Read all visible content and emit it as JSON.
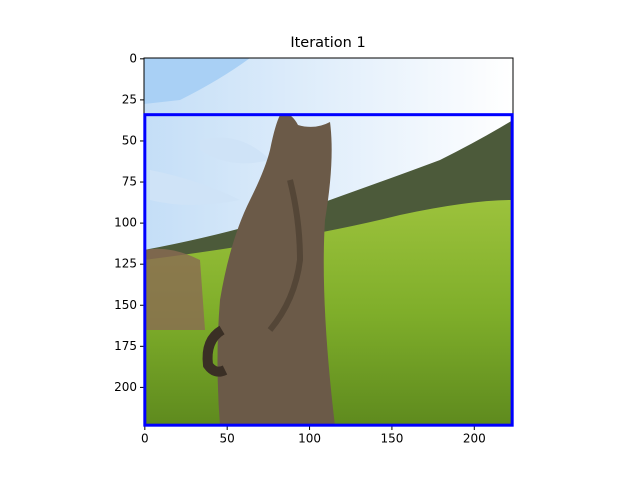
{
  "chart_data": {
    "type": "image",
    "title": "Iteration 1",
    "xlim": [
      -0.5,
      223.5
    ],
    "ylim": [
      223.5,
      -0.5
    ],
    "xticks": [
      0,
      50,
      100,
      150,
      200
    ],
    "yticks": [
      0,
      25,
      50,
      75,
      100,
      125,
      150,
      175,
      200
    ],
    "box": {
      "x": [
        0,
        223
      ],
      "y": [
        34,
        223
      ],
      "color": "#0000ff"
    }
  }
}
